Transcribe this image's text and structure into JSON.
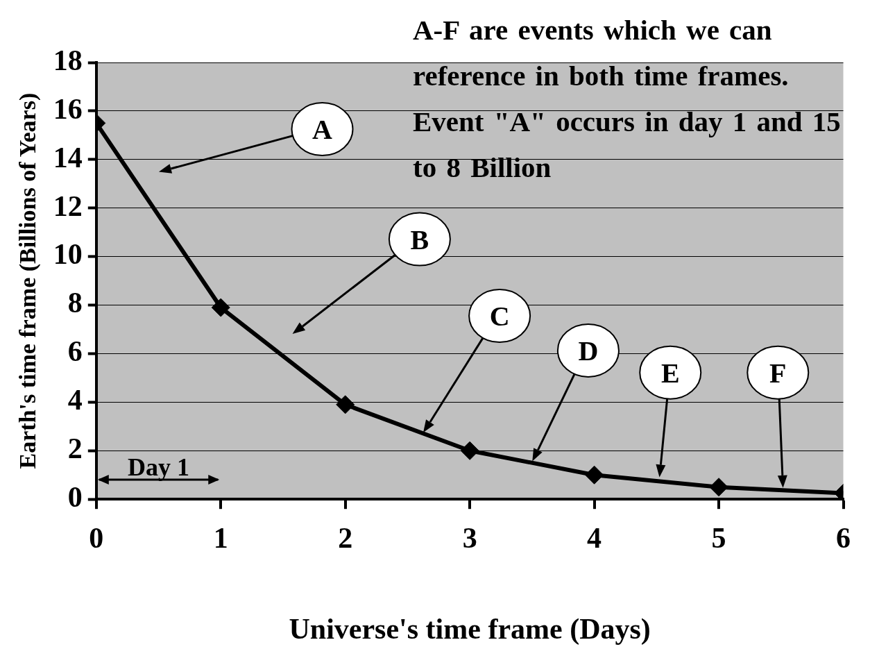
{
  "chart_data": {
    "type": "line",
    "xlabel": "Universe's time frame (Days)",
    "ylabel": "Earth's time frame (Billions of Years)",
    "x": [
      0,
      1,
      2,
      3,
      4,
      5,
      6
    ],
    "series": [
      {
        "color": "#000000",
        "values": [
          15.5,
          7.9,
          3.9,
          2.0,
          1.0,
          0.5,
          0.25
        ]
      }
    ],
    "xlim": [
      0,
      6
    ],
    "xticks": [
      0,
      1,
      2,
      3,
      4,
      5,
      6
    ],
    "ylim": [
      0,
      18
    ],
    "yticks": [
      0,
      2,
      4,
      6,
      8,
      10,
      12,
      14,
      16,
      18
    ],
    "grid": "y",
    "legend": false,
    "marker": "diamond",
    "line_style": "solid",
    "annotations": [
      "A-F are events which we can reference in both time frames. Event \"A\" occurs in day 1 and 15 to 8 Billion",
      "A",
      "B",
      "C",
      "D",
      "E",
      "F",
      "Day 1"
    ]
  }
}
